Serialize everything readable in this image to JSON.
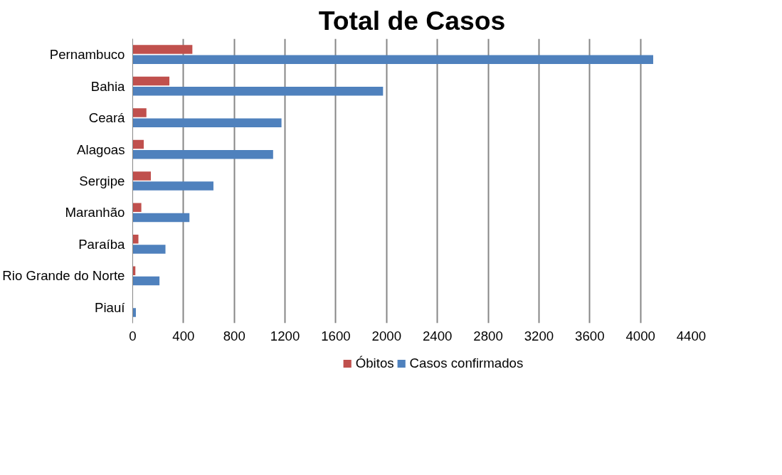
{
  "chart_data": {
    "type": "bar",
    "orientation": "horizontal",
    "title": "Total de Casos",
    "categories": [
      "Pernambuco",
      "Bahia",
      "Ceará",
      "Alagoas",
      "Sergipe",
      "Maranhão",
      "Paraíba",
      "Rio Grande do Norte",
      "Piauí"
    ],
    "series": [
      {
        "name": "Óbitos",
        "color": "#c0504d",
        "values": [
          470,
          289,
          108,
          87,
          143,
          68,
          45,
          21,
          0
        ]
      },
      {
        "name": "Casos confirmados",
        "color": "#4f81bd",
        "values": [
          4100,
          1972,
          1172,
          1106,
          636,
          447,
          258,
          211,
          25
        ]
      }
    ],
    "xlim": [
      0,
      4400
    ],
    "xticks": [
      0,
      400,
      800,
      1200,
      1600,
      2000,
      2400,
      2800,
      3200,
      3600,
      4000,
      4400
    ],
    "grid": "x",
    "legend": "bottom"
  }
}
